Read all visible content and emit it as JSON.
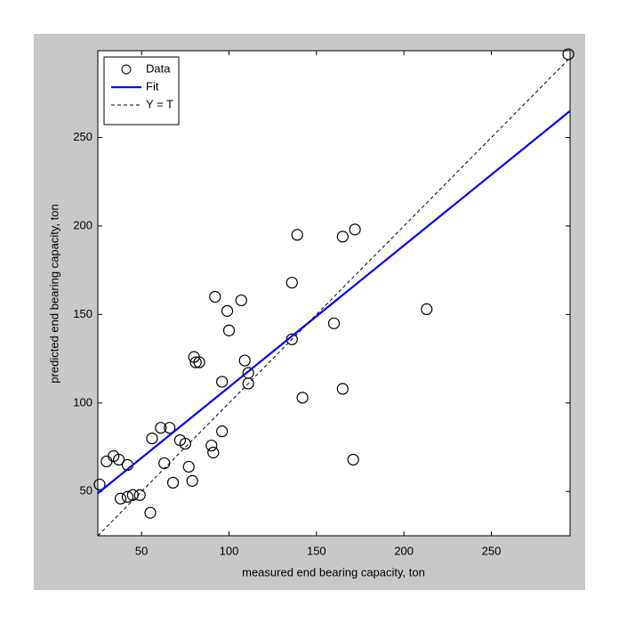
{
  "chart_data": {
    "type": "scatter",
    "xlabel": "measured end bearing capacity, ton",
    "ylabel": "predicted end bearing capacity, ton",
    "xlim": [
      25,
      295
    ],
    "ylim": [
      25,
      299
    ],
    "xticks": [
      50,
      100,
      150,
      200,
      250
    ],
    "yticks": [
      50,
      100,
      150,
      200,
      250
    ],
    "grid": false,
    "legend": "upper left",
    "series": [
      {
        "name": "Data",
        "color": "#000000",
        "marker": "circle",
        "x": [
          26,
          30,
          34,
          37,
          42,
          38,
          42,
          45,
          49,
          56,
          55,
          61,
          63,
          66,
          68,
          72,
          75,
          77,
          79,
          80,
          81,
          83,
          90,
          91,
          92,
          96,
          96,
          99,
          100,
          107,
          109,
          111,
          111,
          136,
          136,
          139,
          142,
          160,
          165,
          165,
          171,
          172,
          213,
          294
        ],
        "y": [
          54,
          67,
          70,
          68,
          65,
          46,
          47,
          48,
          48,
          80,
          38,
          86,
          66,
          86,
          55,
          79,
          77,
          64,
          56,
          126,
          123,
          123,
          76,
          72,
          160,
          84,
          112,
          152,
          141,
          158,
          124,
          117,
          111,
          168,
          136,
          195,
          103,
          145,
          108,
          194,
          68,
          198,
          153,
          297
        ]
      },
      {
        "name": "Fit",
        "color": "#0000ff",
        "x": [
          25,
          295
        ],
        "y": [
          49,
          265
        ]
      },
      {
        "name": "Y = T",
        "color": "#000000",
        "dash": true
      }
    ]
  }
}
